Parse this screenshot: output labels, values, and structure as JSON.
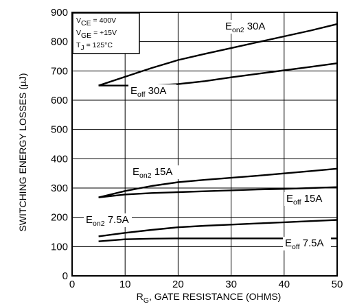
{
  "chart_data": {
    "type": "line",
    "xlabel": "R_G, GATE RESISTANCE (OHMS)",
    "xlabel_parts": {
      "main": "R",
      "sub": "G",
      "rest": ", GATE RESISTANCE (OHMS)"
    },
    "ylabel": "SWITCHING ENERGY LOSSES (µJ)",
    "xlim": [
      0,
      50
    ],
    "ylim": [
      0,
      900
    ],
    "xticks": [
      0,
      10,
      20,
      30,
      40,
      50
    ],
    "yticks": [
      0,
      100,
      200,
      300,
      400,
      500,
      600,
      700,
      800,
      900
    ],
    "grid": true,
    "conditions": [
      {
        "main": "V",
        "sub": "CE",
        "rest": " =  400V"
      },
      {
        "main": "V",
        "sub": "GE",
        "rest": " = +15V"
      },
      {
        "main": "T",
        "sub": "J",
        "rest": " = 125°C"
      }
    ],
    "series": [
      {
        "name": "E_on2 30A",
        "label": {
          "main": "E",
          "sub": "on2",
          "rest": " 30A"
        },
        "x": [
          5,
          10,
          15,
          20,
          25,
          30,
          35,
          40,
          45,
          50
        ],
        "y": [
          650,
          680,
          710,
          737,
          758,
          778,
          798,
          818,
          838,
          860
        ]
      },
      {
        "name": "E_off 30A",
        "label": {
          "main": "E",
          "sub": "off",
          "rest": " 30A"
        },
        "x": [
          5,
          10,
          15,
          20,
          25,
          30,
          35,
          40,
          45,
          50
        ],
        "y": [
          650,
          650,
          650,
          655,
          665,
          678,
          690,
          702,
          714,
          726
        ]
      },
      {
        "name": "E_on2 15A",
        "label": {
          "main": "E",
          "sub": "on2",
          "rest": " 15A"
        },
        "x": [
          5,
          10,
          15,
          20,
          25,
          30,
          35,
          40,
          45,
          50
        ],
        "y": [
          268,
          290,
          307,
          320,
          328,
          335,
          342,
          350,
          358,
          366
        ]
      },
      {
        "name": "E_off 15A",
        "label": {
          "main": "E",
          "sub": "off",
          "rest": " 15A"
        },
        "x": [
          5,
          10,
          15,
          20,
          25,
          30,
          35,
          40,
          45,
          50
        ],
        "y": [
          268,
          278,
          283,
          286,
          289,
          292,
          295,
          297,
          300,
          303
        ]
      },
      {
        "name": "E_on2 7.5A",
        "label": {
          "main": "E",
          "sub": "on2",
          "rest": " 7.5A"
        },
        "x": [
          5,
          10,
          15,
          20,
          25,
          30,
          35,
          40,
          45,
          50
        ],
        "y": [
          135,
          147,
          157,
          166,
          171,
          175,
          179,
          183,
          187,
          191
        ]
      },
      {
        "name": "E_off 7.5A",
        "label": {
          "main": "E",
          "sub": "off",
          "rest": " 7.5A"
        },
        "x": [
          5,
          10,
          15,
          20,
          25,
          30,
          35,
          40,
          45,
          50
        ],
        "y": [
          118,
          125,
          127,
          128,
          128,
          128,
          128,
          128,
          128,
          128
        ]
      }
    ]
  }
}
